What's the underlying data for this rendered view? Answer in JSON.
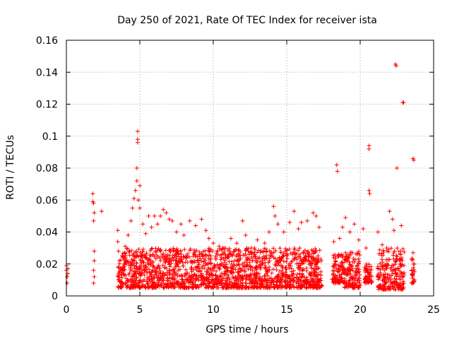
{
  "chart_data": {
    "type": "scatter",
    "title": "Day 250 of 2021, Rate Of TEC Index for receiver ista",
    "xlabel": "GPS time / hours",
    "ylabel": "ROTI / TECUs",
    "xlim": [
      0,
      25
    ],
    "ylim": [
      0,
      0.16
    ],
    "xticks": [
      0,
      5,
      10,
      15,
      20,
      25
    ],
    "xtick_labels": [
      "0",
      "5",
      "10",
      "15",
      "20",
      "25"
    ],
    "yticks": [
      0,
      0.02,
      0.04,
      0.06,
      0.08,
      0.1,
      0.12,
      0.14,
      0.16
    ],
    "ytick_labels": [
      "0",
      "0.02",
      "0.04",
      "0.06",
      "0.08",
      "0.1",
      "0.12",
      "0.14",
      "0.16"
    ],
    "grid": true,
    "marker": "+",
    "color": "#ff0000",
    "series": [
      {
        "name": "ROTI",
        "points": [
          [
            0.0,
            0.019
          ],
          [
            0.0,
            0.016
          ],
          [
            0.05,
            0.012
          ],
          [
            0.05,
            0.008
          ],
          [
            0.1,
            0.017
          ],
          [
            0.1,
            0.014
          ],
          [
            1.8,
            0.064
          ],
          [
            1.8,
            0.059
          ],
          [
            1.85,
            0.058
          ],
          [
            1.9,
            0.052
          ],
          [
            1.85,
            0.047
          ],
          [
            1.9,
            0.028
          ],
          [
            1.9,
            0.022
          ],
          [
            1.85,
            0.016
          ],
          [
            1.9,
            0.012
          ],
          [
            1.85,
            0.008
          ],
          [
            2.4,
            0.053
          ],
          [
            3.5,
            0.041
          ],
          [
            3.5,
            0.034
          ],
          [
            3.55,
            0.028
          ],
          [
            3.6,
            0.022
          ],
          [
            3.6,
            0.015
          ],
          [
            3.55,
            0.01
          ],
          [
            3.8,
            0.025
          ],
          [
            4.0,
            0.031
          ],
          [
            4.2,
            0.038
          ],
          [
            4.4,
            0.047
          ],
          [
            4.5,
            0.055
          ],
          [
            4.6,
            0.061
          ],
          [
            4.7,
            0.066
          ],
          [
            4.8,
            0.072
          ],
          [
            4.8,
            0.08
          ],
          [
            4.85,
            0.096
          ],
          [
            4.85,
            0.098
          ],
          [
            4.85,
            0.103
          ],
          [
            4.9,
            0.06
          ],
          [
            5.0,
            0.069
          ],
          [
            5.0,
            0.055
          ],
          [
            5.2,
            0.045
          ],
          [
            5.4,
            0.039
          ],
          [
            5.6,
            0.05
          ],
          [
            5.8,
            0.043
          ],
          [
            6.0,
            0.05
          ],
          [
            6.2,
            0.045
          ],
          [
            6.4,
            0.05
          ],
          [
            6.6,
            0.054
          ],
          [
            6.8,
            0.052
          ],
          [
            7.0,
            0.048
          ],
          [
            7.2,
            0.047
          ],
          [
            7.5,
            0.04
          ],
          [
            7.8,
            0.045
          ],
          [
            8.0,
            0.038
          ],
          [
            8.4,
            0.047
          ],
          [
            8.8,
            0.044
          ],
          [
            9.2,
            0.048
          ],
          [
            9.5,
            0.041
          ],
          [
            9.7,
            0.036
          ],
          [
            10.0,
            0.033
          ],
          [
            10.4,
            0.031
          ],
          [
            10.8,
            0.03
          ],
          [
            11.2,
            0.036
          ],
          [
            11.6,
            0.033
          ],
          [
            12.0,
            0.047
          ],
          [
            12.2,
            0.038
          ],
          [
            12.6,
            0.03
          ],
          [
            13.0,
            0.035
          ],
          [
            13.5,
            0.033
          ],
          [
            13.8,
            0.04
          ],
          [
            14.1,
            0.056
          ],
          [
            14.2,
            0.05
          ],
          [
            14.4,
            0.045
          ],
          [
            14.8,
            0.04
          ],
          [
            15.2,
            0.046
          ],
          [
            15.5,
            0.053
          ],
          [
            15.8,
            0.042
          ],
          [
            16.0,
            0.046
          ],
          [
            16.4,
            0.047
          ],
          [
            16.8,
            0.052
          ],
          [
            17.0,
            0.05
          ],
          [
            17.2,
            0.043
          ],
          [
            18.2,
            0.034
          ],
          [
            18.4,
            0.082
          ],
          [
            18.45,
            0.078
          ],
          [
            18.6,
            0.036
          ],
          [
            18.8,
            0.043
          ],
          [
            19.0,
            0.049
          ],
          [
            19.3,
            0.04
          ],
          [
            19.6,
            0.045
          ],
          [
            19.9,
            0.035
          ],
          [
            20.2,
            0.042
          ],
          [
            20.4,
            0.03
          ],
          [
            20.6,
            0.094
          ],
          [
            20.6,
            0.092
          ],
          [
            20.6,
            0.066
          ],
          [
            20.65,
            0.064
          ],
          [
            21.2,
            0.04
          ],
          [
            21.5,
            0.032
          ],
          [
            21.8,
            0.03
          ],
          [
            22.0,
            0.053
          ],
          [
            22.2,
            0.048
          ],
          [
            22.3,
            0.041
          ],
          [
            22.4,
            0.145
          ],
          [
            22.45,
            0.144
          ],
          [
            22.5,
            0.08
          ],
          [
            22.8,
            0.044
          ],
          [
            22.9,
            0.121
          ],
          [
            22.95,
            0.121
          ],
          [
            23.6,
            0.086
          ],
          [
            23.65,
            0.085
          ],
          [
            23.6,
            0.027
          ],
          [
            23.65,
            0.02
          ],
          [
            23.6,
            0.014
          ],
          [
            23.65,
            0.009
          ]
        ],
        "dense_bands": [
          {
            "x": [
              3.5,
              17.4
            ],
            "y": [
              0.005,
              0.03
            ]
          },
          {
            "x": [
              18.1,
              18.9
            ],
            "y": [
              0.008,
              0.026
            ]
          },
          {
            "x": [
              18.9,
              20.0
            ],
            "y": [
              0.005,
              0.028
            ]
          },
          {
            "x": [
              20.3,
              20.8
            ],
            "y": [
              0.008,
              0.02
            ]
          },
          {
            "x": [
              21.2,
              23.0
            ],
            "y": [
              0.004,
              0.03
            ]
          },
          {
            "x": [
              23.5,
              23.7
            ],
            "y": [
              0.008,
              0.026
            ]
          }
        ]
      }
    ]
  }
}
